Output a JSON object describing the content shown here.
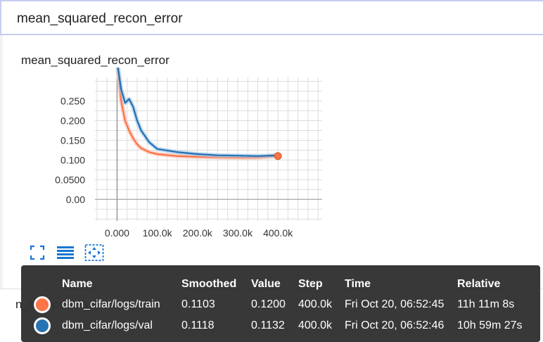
{
  "search": {
    "value": "mean_squared_recon_error"
  },
  "card": {
    "title": "mean_squared_recon_error"
  },
  "next_card": {
    "title": "n_m_updates"
  },
  "colors": {
    "train": "#ff7043",
    "val": "#1f6fb0",
    "train_light": "#f6c3b4",
    "val_light": "#a8c8e8"
  },
  "controls": [
    "fullscreen-icon",
    "data-table-icon",
    "fit-domain-icon"
  ],
  "chart_data": {
    "type": "line",
    "title": "mean_squared_recon_error",
    "xlabel": "",
    "ylabel": "",
    "xlim": [
      -55000,
      510000
    ],
    "ylim": [
      -0.055,
      0.31
    ],
    "x_ticks": [
      "0.000",
      "100.0k",
      "200.0k",
      "300.0k",
      "400.0k"
    ],
    "x_tick_values": [
      0,
      100000,
      200000,
      300000,
      400000
    ],
    "y_ticks": [
      "0.250",
      "0.200",
      "0.150",
      "0.100",
      "0.0500",
      "0.00"
    ],
    "y_tick_values": [
      0.25,
      0.2,
      0.15,
      0.1,
      0.05,
      0
    ],
    "grid": true,
    "series": [
      {
        "name": "dbm_cifar/logs/train",
        "x": [
          0,
          10000,
          20000,
          30000,
          40000,
          50000,
          60000,
          80000,
          100000,
          150000,
          200000,
          250000,
          300000,
          350000,
          400000
        ],
        "values": [
          0.35,
          0.25,
          0.2,
          0.175,
          0.155,
          0.14,
          0.13,
          0.12,
          0.115,
          0.11,
          0.108,
          0.107,
          0.106,
          0.106,
          0.11
        ]
      },
      {
        "name": "dbm_cifar/logs/val",
        "x": [
          0,
          10000,
          20000,
          30000,
          40000,
          50000,
          60000,
          80000,
          100000,
          150000,
          200000,
          250000,
          300000,
          350000,
          400000
        ],
        "values": [
          0.35,
          0.28,
          0.245,
          0.255,
          0.235,
          0.2,
          0.175,
          0.145,
          0.128,
          0.12,
          0.115,
          0.112,
          0.111,
          0.11,
          0.112
        ]
      }
    ]
  },
  "tooltip": {
    "headers": {
      "name": "Name",
      "smoothed": "Smoothed",
      "value": "Value",
      "step": "Step",
      "time": "Time",
      "relative": "Relative"
    },
    "rows": [
      {
        "name": "dbm_cifar/logs/train",
        "smoothed": "0.1103",
        "value": "0.1200",
        "step": "400.0k",
        "time": "Fri Oct 20, 06:52:45",
        "relative": "11h 11m 8s"
      },
      {
        "name": "dbm_cifar/logs/val",
        "smoothed": "0.1118",
        "value": "0.1132",
        "step": "400.0k",
        "time": "Fri Oct 20, 06:52:46",
        "relative": "10h 59m 27s"
      }
    ]
  }
}
